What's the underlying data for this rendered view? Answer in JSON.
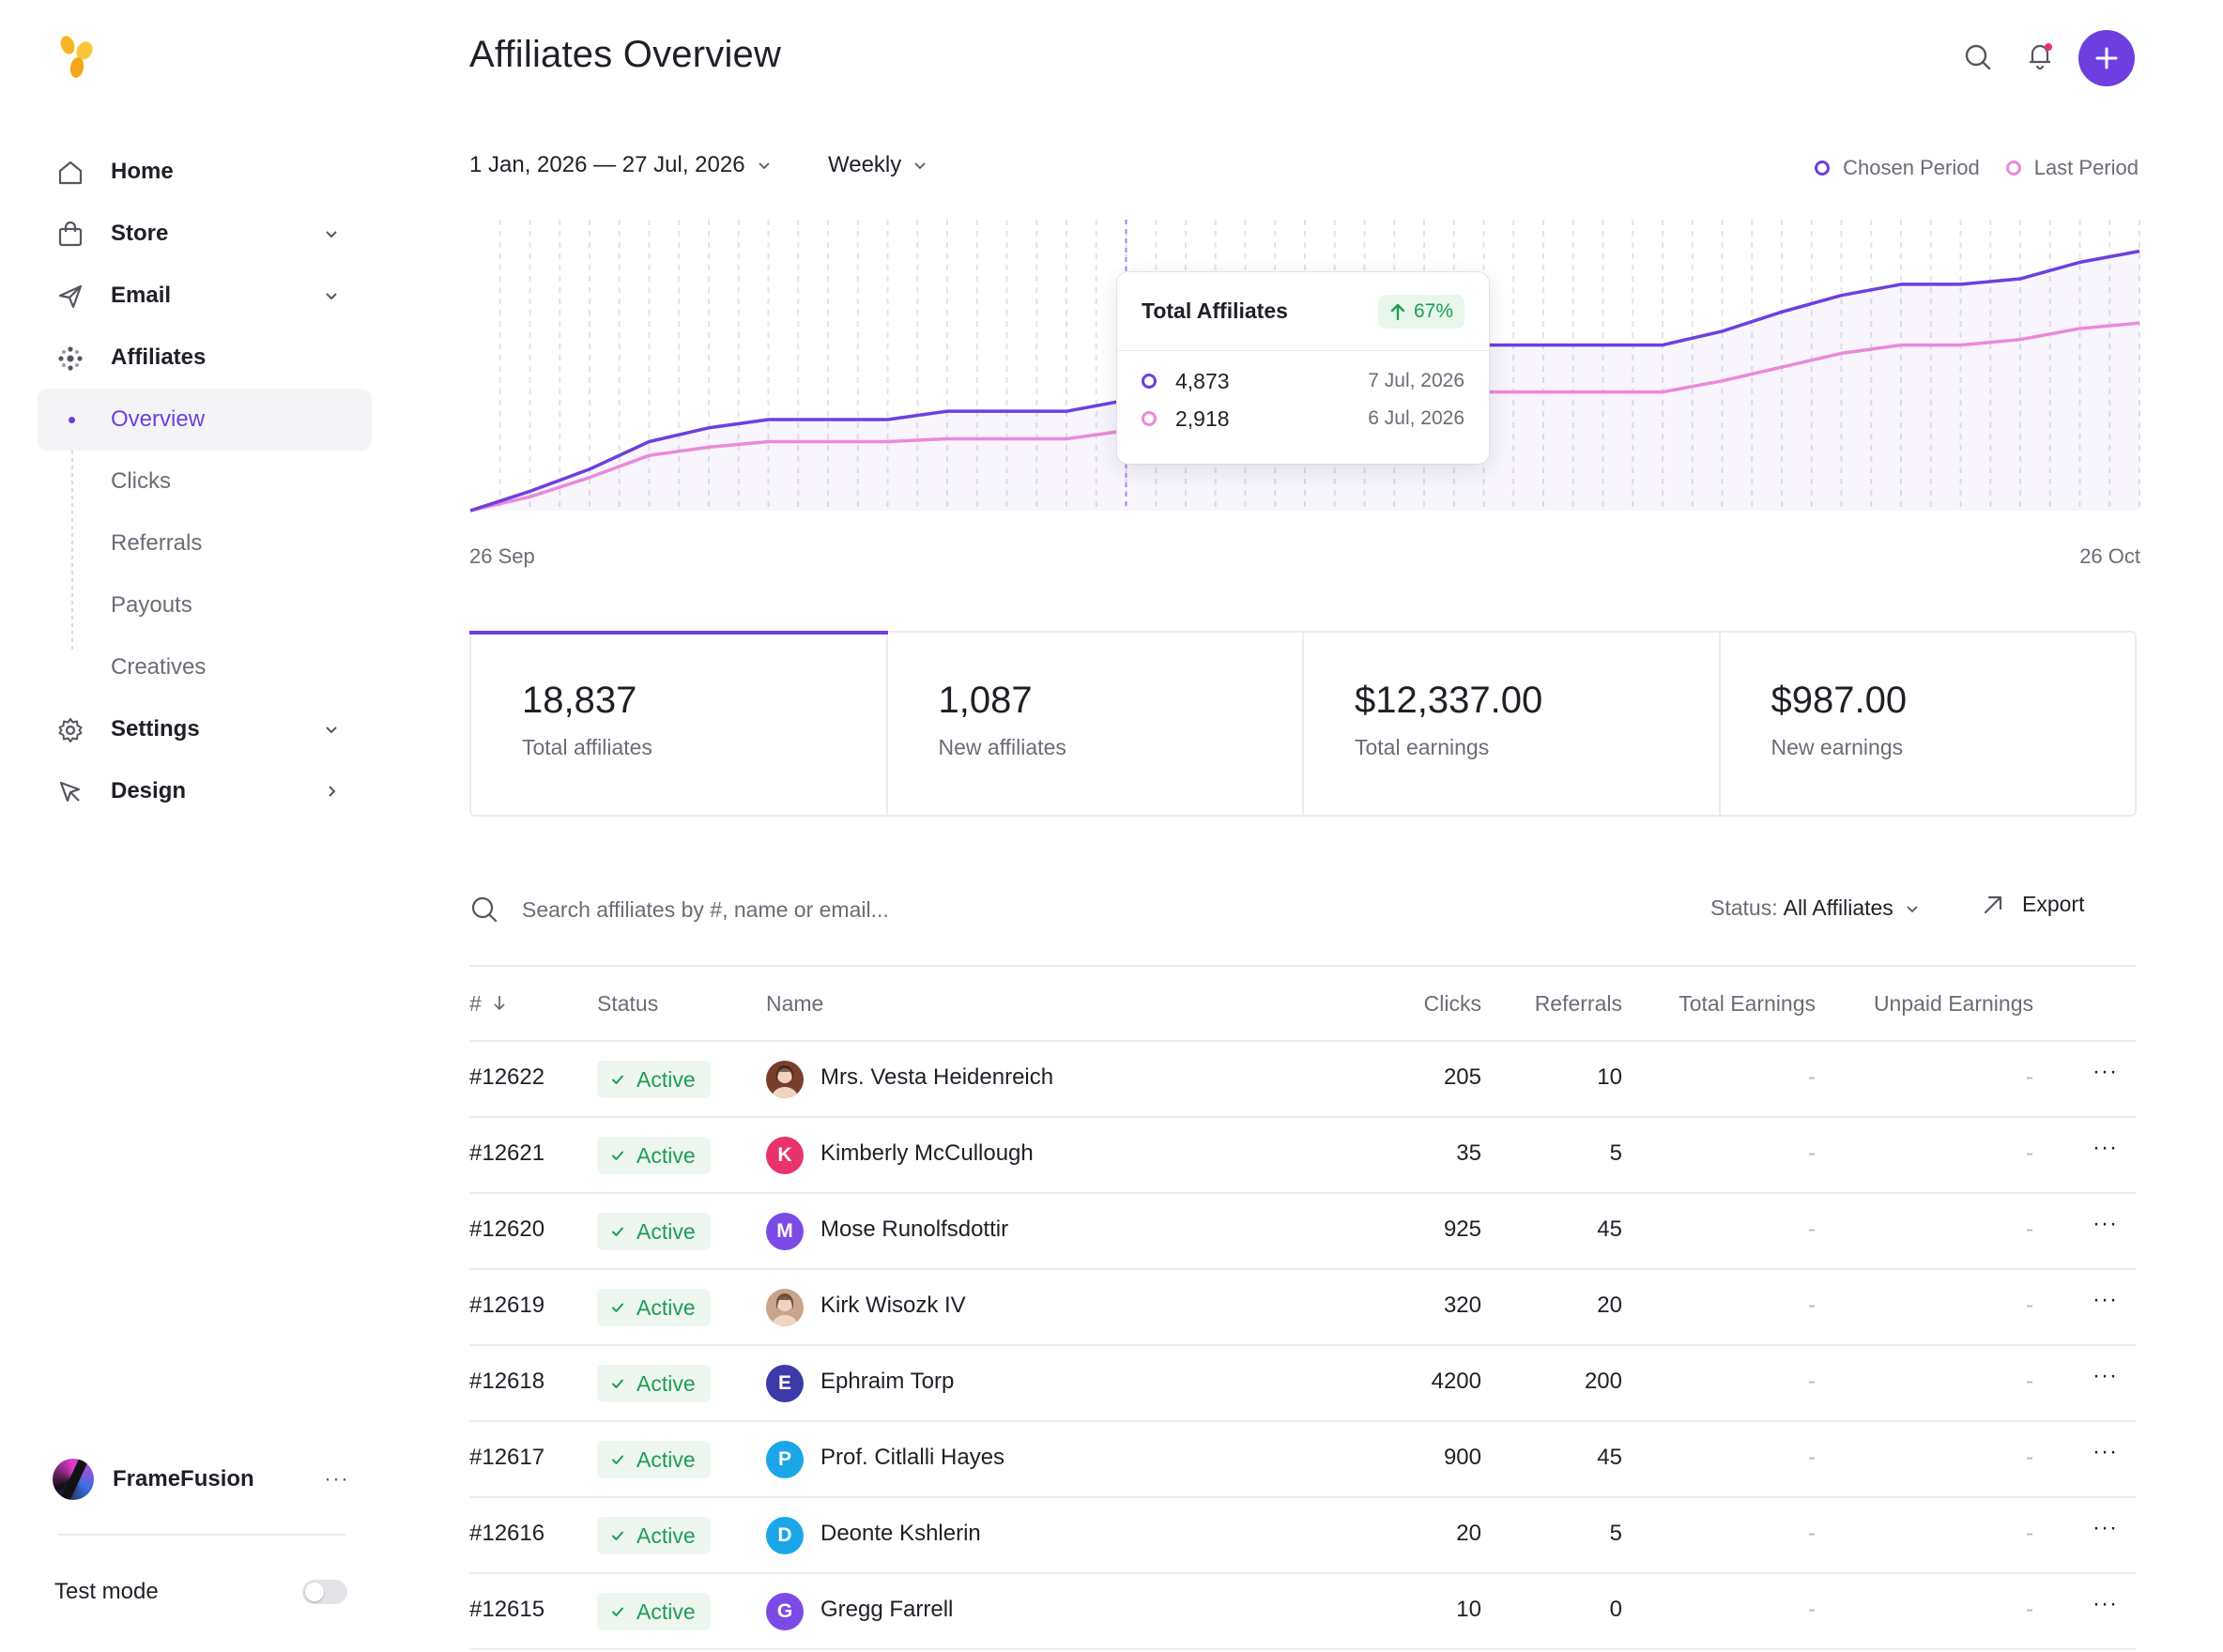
{
  "app": {
    "page_title": "Affiliates Overview"
  },
  "sidebar": {
    "items": [
      {
        "label": "Home",
        "icon": "home-icon"
      },
      {
        "label": "Store",
        "icon": "bag-icon"
      },
      {
        "label": "Email",
        "icon": "send-icon"
      },
      {
        "label": "Affiliates",
        "icon": "affiliates-icon"
      }
    ],
    "affiliate_subitems": [
      "Overview",
      "Clicks",
      "Referrals",
      "Payouts",
      "Creatives"
    ],
    "bottom_items": [
      {
        "label": "Settings",
        "icon": "gear-icon"
      },
      {
        "label": "Design",
        "icon": "cursor-icon"
      }
    ],
    "workspace": {
      "name": "FrameFusion",
      "more": "···"
    },
    "test_mode": {
      "label": "Test mode",
      "enabled": false
    }
  },
  "controls": {
    "date_range": "1 Jan, 2026 — 27 Jul, 2026",
    "granularity": "Weekly",
    "legend": {
      "chosen": "Chosen Period",
      "last": "Last Period"
    }
  },
  "colors": {
    "accent": "#6d3fe0",
    "last_period": "#e98ad8",
    "success": "#1f9d55"
  },
  "chart_data": {
    "type": "line",
    "x_start_label": "26 Sep",
    "x_end_label": "26 Oct",
    "series": [
      {
        "name": "Chosen Period",
        "values": [
          0,
          0.07,
          0.15,
          0.25,
          0.3,
          0.33,
          0.33,
          0.33,
          0.36,
          0.36,
          0.36,
          0.4,
          0.45,
          0.5,
          0.56,
          0.58,
          0.58,
          0.6,
          0.6,
          0.6,
          0.6,
          0.65,
          0.72,
          0.78,
          0.82,
          0.82,
          0.84,
          0.9,
          0.94
        ]
      },
      {
        "name": "Last Period",
        "values": [
          0,
          0.05,
          0.12,
          0.2,
          0.23,
          0.25,
          0.25,
          0.25,
          0.26,
          0.26,
          0.26,
          0.29,
          0.33,
          0.37,
          0.41,
          0.42,
          0.42,
          0.43,
          0.43,
          0.43,
          0.43,
          0.47,
          0.52,
          0.57,
          0.6,
          0.6,
          0.62,
          0.66,
          0.68
        ]
      }
    ],
    "highlight_index": 11,
    "tooltip": {
      "title": "Total Affiliates",
      "change": "67%",
      "chosen_value": "4,873",
      "chosen_date": "7 Jul, 2026",
      "last_value": "2,918",
      "last_date": "6 Jul, 2026"
    }
  },
  "stats": [
    {
      "value": "18,837",
      "label": "Total affiliates"
    },
    {
      "value": "1,087",
      "label": "New affiliates"
    },
    {
      "value": "$12,337.00",
      "label": "Total earnings"
    },
    {
      "value": "$987.00",
      "label": "New earnings"
    }
  ],
  "search": {
    "placeholder": "Search affiliates by #, name or email..."
  },
  "filter": {
    "label": "Status:",
    "value": "All Affiliates"
  },
  "export_label": "Export",
  "table": {
    "headers": {
      "id": "#",
      "status": "Status",
      "name": "Name",
      "clicks": "Clicks",
      "referrals": "Referrals",
      "total_earnings": "Total Earnings",
      "unpaid_earnings": "Unpaid Earnings"
    },
    "rows": [
      {
        "id": "#12622",
        "status": "Active",
        "name": "Mrs. Vesta Heidenreich",
        "initial": "",
        "avatar_color": "#7a3e2c",
        "clicks": "205",
        "referrals": "10",
        "total": "-",
        "unpaid": "-"
      },
      {
        "id": "#12621",
        "status": "Active",
        "name": "Kimberly McCullough",
        "initial": "K",
        "avatar_color": "#e8346a",
        "clicks": "35",
        "referrals": "5",
        "total": "-",
        "unpaid": "-"
      },
      {
        "id": "#12620",
        "status": "Active",
        "name": "Mose Runolfsdottir",
        "initial": "M",
        "avatar_color": "#7b4be6",
        "clicks": "925",
        "referrals": "45",
        "total": "-",
        "unpaid": "-"
      },
      {
        "id": "#12619",
        "status": "Active",
        "name": "Kirk Wisozk IV",
        "initial": "",
        "avatar_color": "#c9a48a",
        "clicks": "320",
        "referrals": "20",
        "total": "-",
        "unpaid": "-"
      },
      {
        "id": "#12618",
        "status": "Active",
        "name": "Ephraim Torp",
        "initial": "E",
        "avatar_color": "#3b3aa8",
        "clicks": "4200",
        "referrals": "200",
        "total": "-",
        "unpaid": "-"
      },
      {
        "id": "#12617",
        "status": "Active",
        "name": "Prof. Citlalli Hayes",
        "initial": "P",
        "avatar_color": "#1aa6e8",
        "clicks": "900",
        "referrals": "45",
        "total": "-",
        "unpaid": "-"
      },
      {
        "id": "#12616",
        "status": "Active",
        "name": "Deonte Kshlerin",
        "initial": "D",
        "avatar_color": "#1aa6e8",
        "clicks": "20",
        "referrals": "5",
        "total": "-",
        "unpaid": "-"
      },
      {
        "id": "#12615",
        "status": "Active",
        "name": "Gregg Farrell",
        "initial": "G",
        "avatar_color": "#7b4be6",
        "clicks": "10",
        "referrals": "0",
        "total": "-",
        "unpaid": "-"
      }
    ]
  }
}
